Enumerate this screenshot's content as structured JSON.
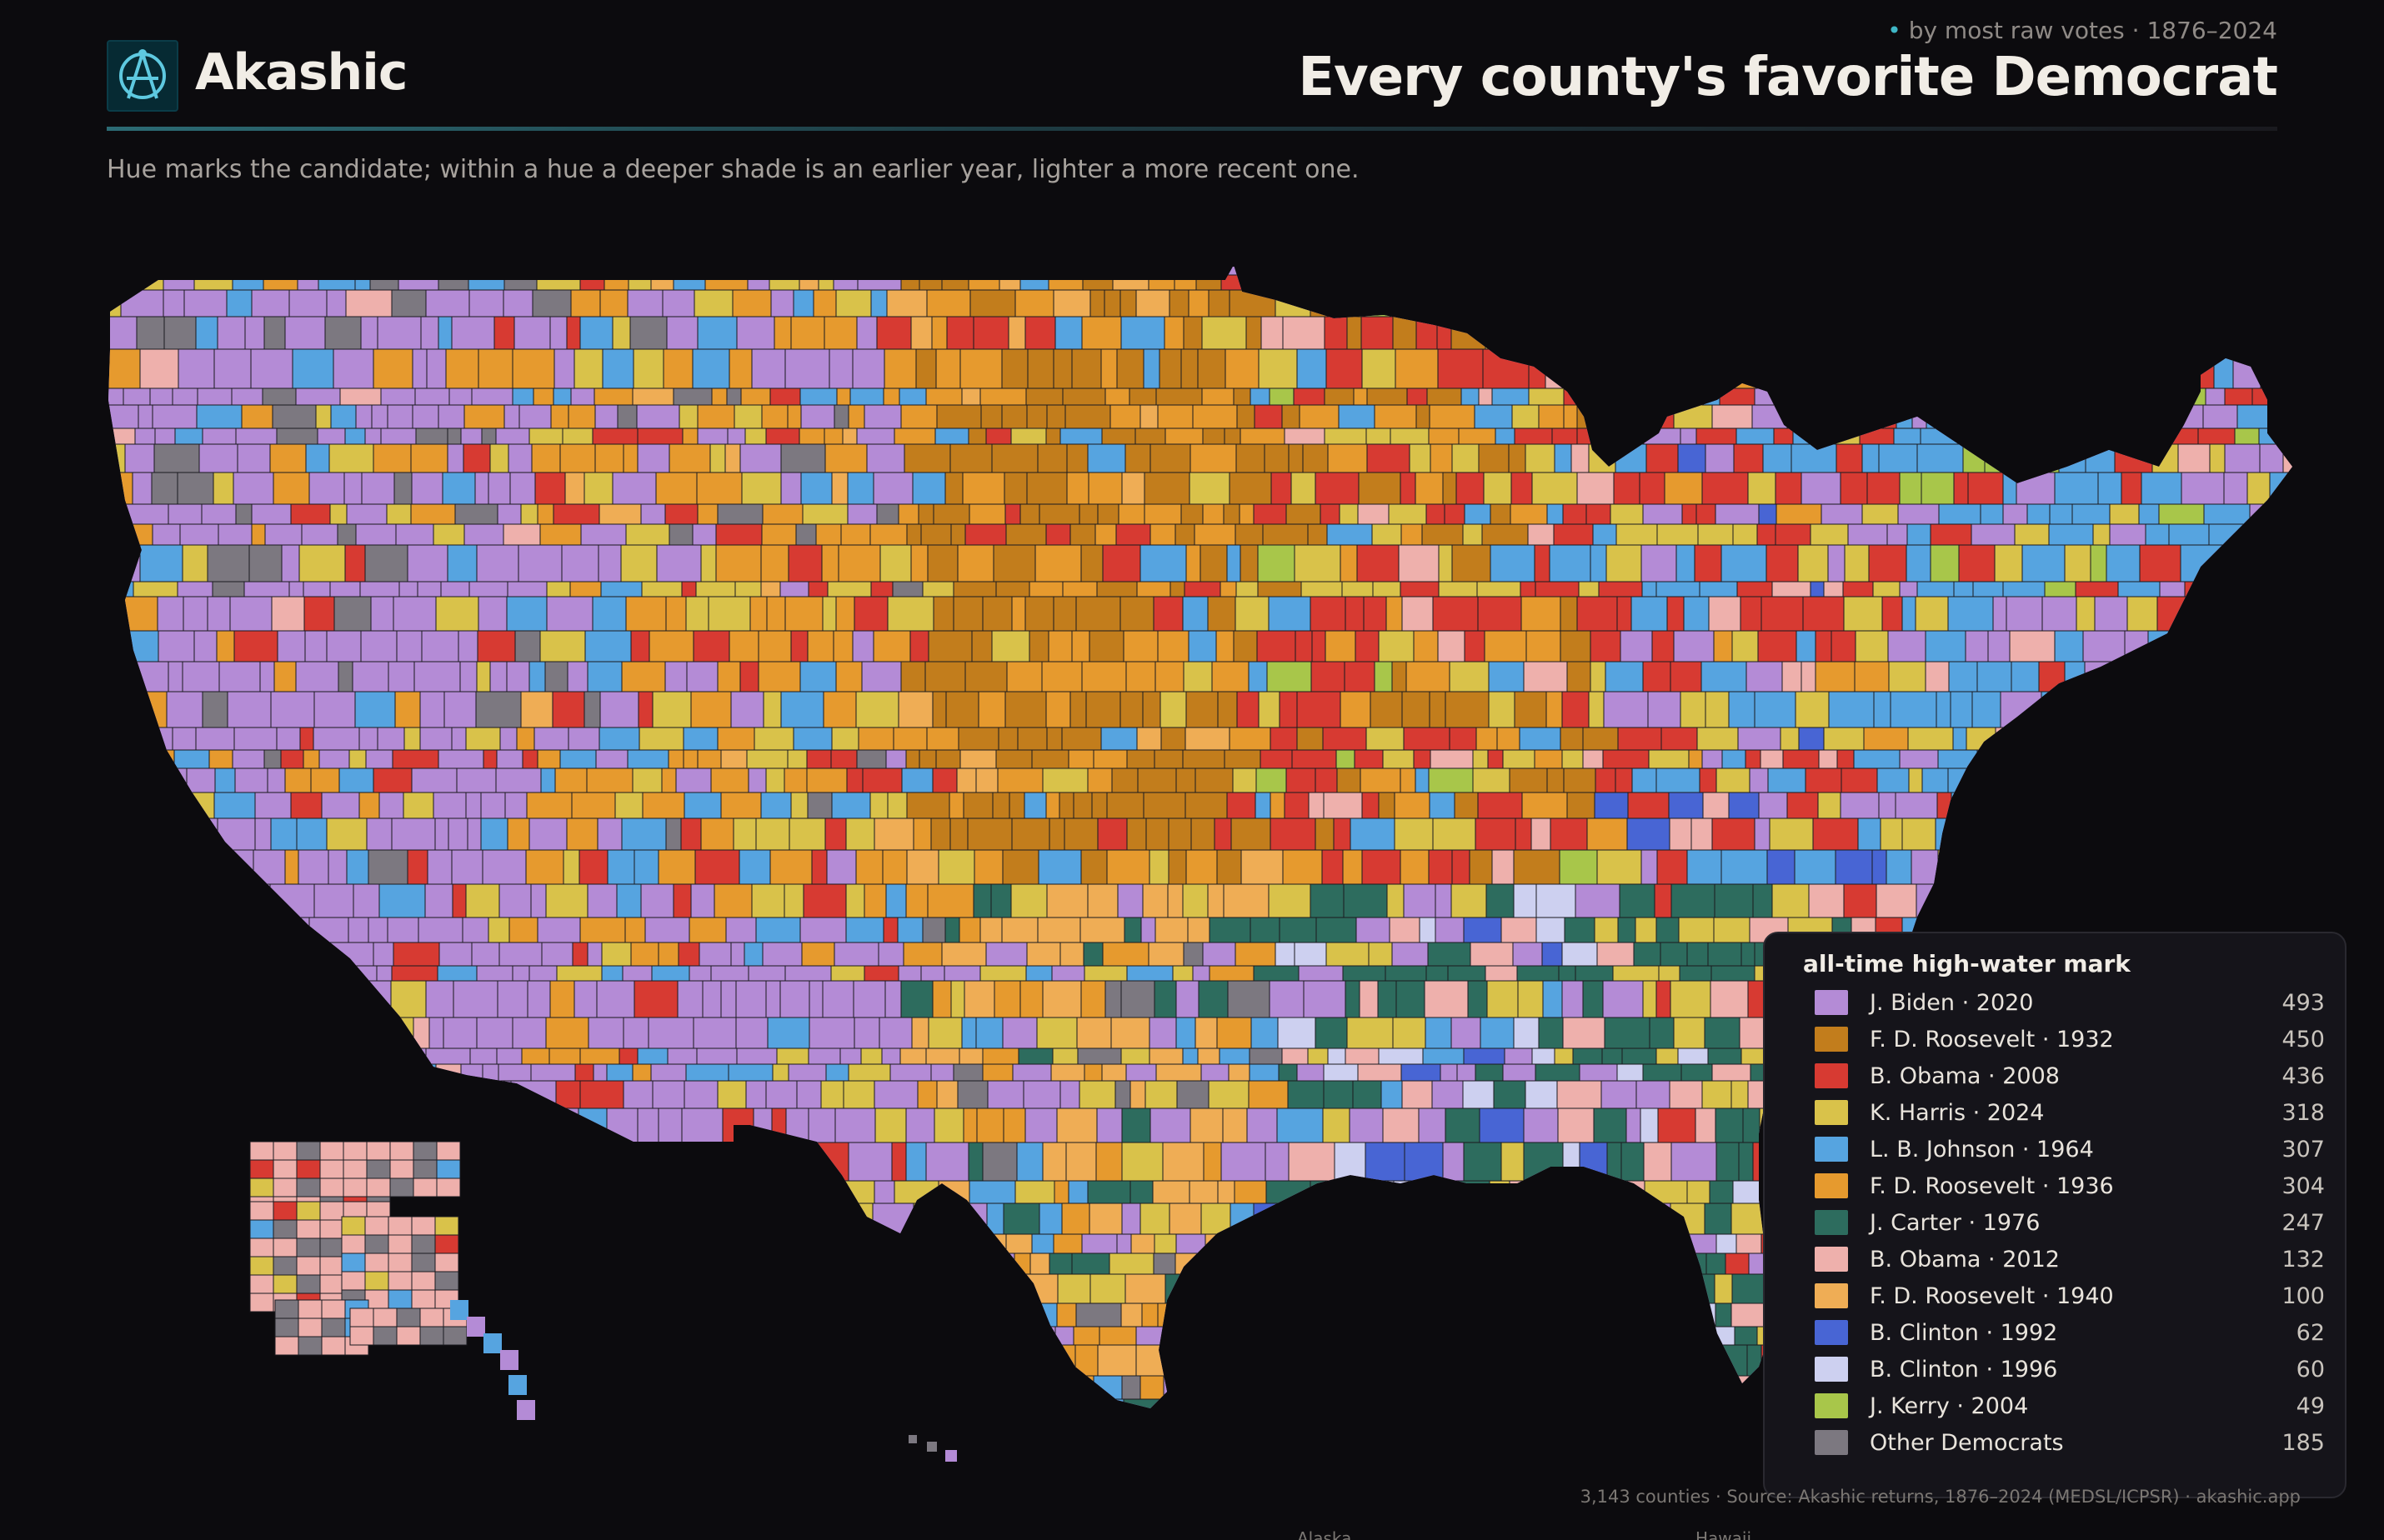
{
  "header": {
    "brand": "Akashic",
    "tagline_dot": "•",
    "tagline": "by most raw votes · 1876–2024",
    "title": "Every county's favorite Democrat",
    "subtitle": "Hue marks the candidate; within a hue a deeper shade is an earlier year, lighter a more recent one."
  },
  "legend": {
    "title": "all-time high-water mark",
    "items": [
      {
        "label": "J. Biden · 2020",
        "count": "493",
        "color": "#b48bd6"
      },
      {
        "label": "F. D. Roosevelt · 1932",
        "count": "450",
        "color": "#c27d1c"
      },
      {
        "label": "B. Obama · 2008",
        "count": "436",
        "color": "#d73a32"
      },
      {
        "label": "K. Harris · 2024",
        "count": "318",
        "color": "#d9c24a"
      },
      {
        "label": "L. B. Johnson · 1964",
        "count": "307",
        "color": "#56a4e0"
      },
      {
        "label": "F. D. Roosevelt · 1936",
        "count": "304",
        "color": "#e69a2e"
      },
      {
        "label": "J. Carter · 1976",
        "count": "247",
        "color": "#2d6c5e"
      },
      {
        "label": "B. Obama · 2012",
        "count": "132",
        "color": "#eeb0ac"
      },
      {
        "label": "F. D. Roosevelt · 1940",
        "count": "100",
        "color": "#efad55"
      },
      {
        "label": "B. Clinton · 1992",
        "count": "62",
        "color": "#4865d4"
      },
      {
        "label": "B. Clinton · 1996",
        "count": "60",
        "color": "#cdd0f0"
      },
      {
        "label": "J. Kerry · 2004",
        "count": "49",
        "color": "#a8c64a"
      },
      {
        "label": "Other Democrats",
        "count": "185",
        "color": "#7c7880"
      }
    ]
  },
  "footer": "3,143 counties · Source: Akashic returns, 1876–2024 (MEDSL/ICPSR) · akashic.app",
  "insets": {
    "alaska": "Alaska",
    "hawaii": "Hawaii"
  },
  "colors": {
    "background": "#0c0b0e",
    "land_border": "#1a1a1f",
    "accent": "#3fb6c6"
  }
}
